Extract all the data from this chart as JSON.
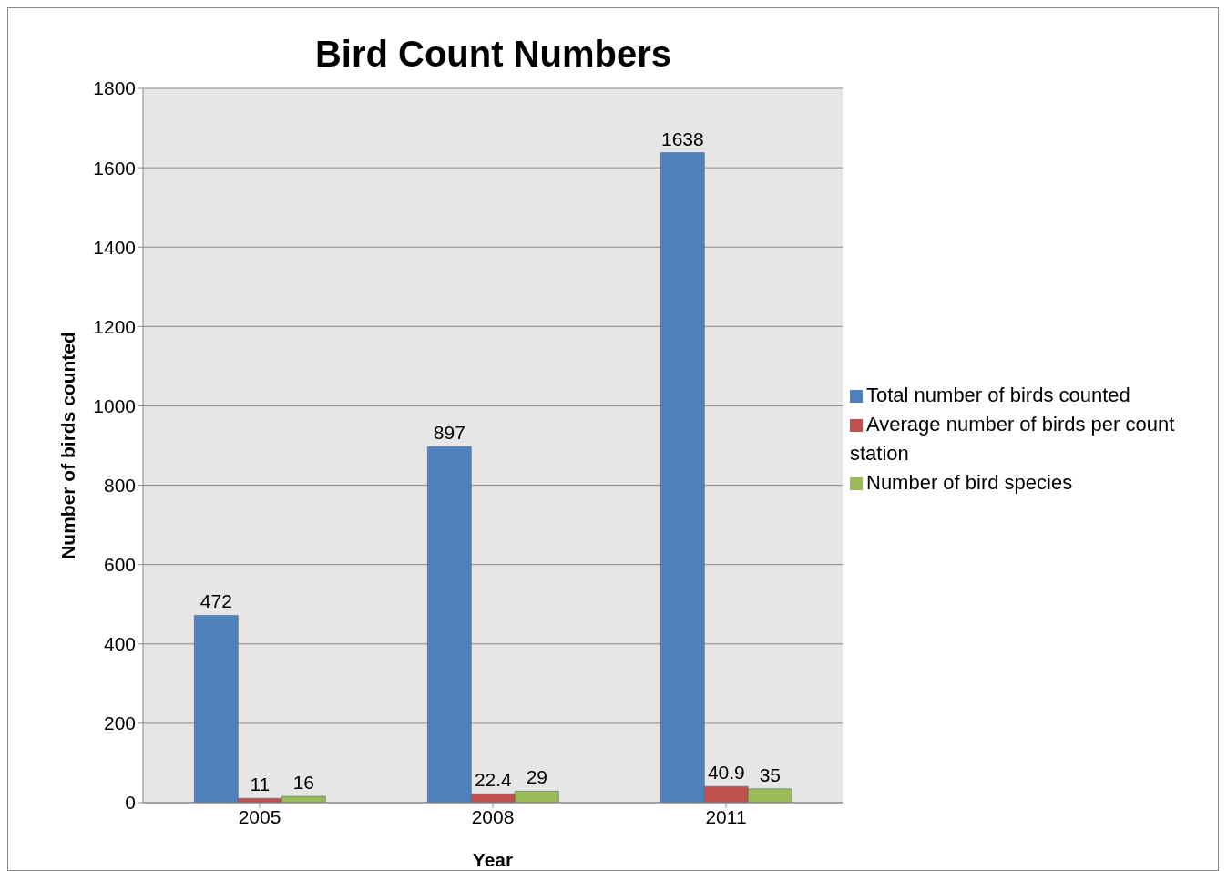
{
  "chart_data": {
    "type": "bar",
    "title": "Bird Count Numbers",
    "xlabel": "Year",
    "ylabel": "Number of birds counted",
    "categories": [
      "2005",
      "2008",
      "2011"
    ],
    "series": [
      {
        "name": "Total number of birds counted",
        "color": "#4f81bd",
        "values": [
          472,
          897,
          1638
        ]
      },
      {
        "name": "Average number of birds per count station",
        "color": "#c0504d",
        "values": [
          11,
          22.4,
          40.9
        ]
      },
      {
        "name": "Number of bird species",
        "color": "#9bbb59",
        "values": [
          16,
          29,
          35
        ]
      }
    ],
    "ylim": [
      0,
      1800
    ],
    "yticks": [
      0,
      200,
      400,
      600,
      800,
      1000,
      1200,
      1400,
      1600,
      1800
    ],
    "grid": "y",
    "legend": "right",
    "data_labels": true
  }
}
